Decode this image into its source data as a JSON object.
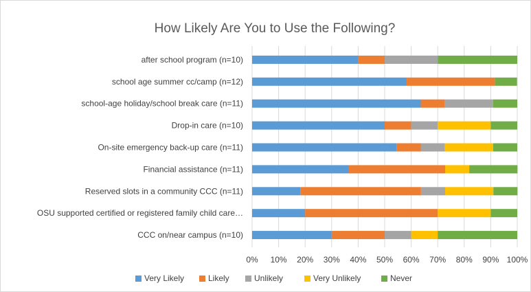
{
  "chart_data": {
    "type": "bar",
    "orientation": "horizontal",
    "stacked": "percent",
    "title": "How Likely Are You to Use the Following?",
    "categories": [
      "after school program (n=10)",
      "school age summer cc/camp (n=12)",
      "school-age holiday/school break care (n=11)",
      "Drop-in care (n=10)",
      "On-site emergency back-up care (n=11)",
      "Financial assistance (n=11)",
      "Reserved slots in a community CCC (n=11)",
      "OSU supported certified or registered family child care…",
      "CCC on/near campus (n=10)"
    ],
    "series": [
      {
        "name": "Very Likely",
        "color": "#5b9bd5",
        "values": [
          40,
          58.3,
          63.6,
          50,
          54.5,
          36.4,
          18.2,
          20,
          30
        ]
      },
      {
        "name": "Likely",
        "color": "#ed7d31",
        "values": [
          10,
          33.3,
          9.1,
          10,
          9.1,
          36.4,
          45.5,
          50,
          20
        ]
      },
      {
        "name": "Unlikely",
        "color": "#a5a5a5",
        "values": [
          20,
          0,
          18.2,
          10,
          9.1,
          0,
          9.1,
          0,
          10
        ]
      },
      {
        "name": "Very Unlikely",
        "color": "#ffc000",
        "values": [
          0,
          0,
          0,
          20,
          18.2,
          9.1,
          18.2,
          20,
          10
        ]
      },
      {
        "name": "Never",
        "color": "#70ad47",
        "values": [
          30,
          8.3,
          9.1,
          10,
          9.1,
          18.2,
          9.1,
          10,
          30
        ]
      }
    ],
    "xlim": [
      0,
      100
    ],
    "xticks": [
      "0%",
      "10%",
      "20%",
      "30%",
      "40%",
      "50%",
      "60%",
      "70%",
      "80%",
      "90%",
      "100%"
    ],
    "grid": true,
    "legend": "bottom"
  }
}
